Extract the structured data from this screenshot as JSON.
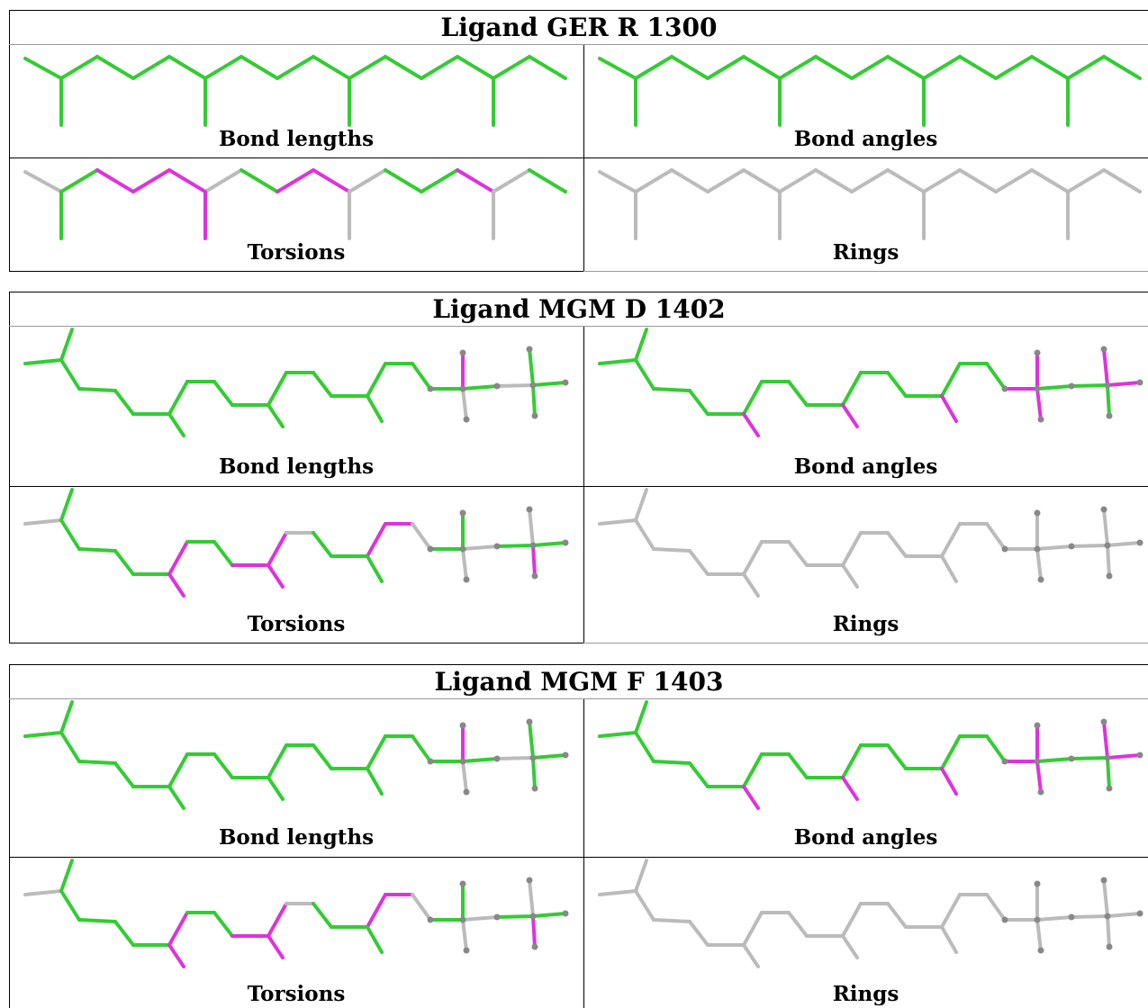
{
  "colors": {
    "green": "#33cc33",
    "magenta": "#dd33dd",
    "grey": "#bbbbbb",
    "atom": "#888888",
    "border": "#000000"
  },
  "cell_labels": [
    "Bond lengths",
    "Bond angles",
    "Torsions",
    "Rings"
  ],
  "ligands": [
    {
      "title": "Ligand GER R 1300",
      "molecule": "chain",
      "panels": [
        {
          "label": "Bond lengths",
          "colors": [
            "g",
            "g",
            "g",
            "g",
            "g",
            "g",
            "g",
            "g",
            "g",
            "g",
            "g",
            "g",
            "g",
            "g",
            "g",
            "g",
            "g",
            "g",
            "g"
          ]
        },
        {
          "label": "Bond angles",
          "colors": [
            "g",
            "g",
            "g",
            "g",
            "g",
            "g",
            "g",
            "g",
            "g",
            "g",
            "g",
            "g",
            "g",
            "g",
            "g",
            "g",
            "g",
            "g",
            "g"
          ]
        },
        {
          "label": "Torsions",
          "colors": [
            "n",
            "g",
            "m",
            "m",
            "m",
            "n",
            "g",
            "m",
            "m",
            "n",
            "g",
            "g",
            "m",
            "n",
            "g",
            "g",
            "m",
            "n",
            "n"
          ]
        },
        {
          "label": "Rings",
          "colors": [
            "n",
            "n",
            "n",
            "n",
            "n",
            "n",
            "n",
            "n",
            "n",
            "n",
            "n",
            "n",
            "n",
            "n",
            "n",
            "n",
            "n",
            "n",
            "n"
          ]
        }
      ]
    },
    {
      "title": "Ligand MGM D 1402",
      "molecule": "branched",
      "panels": [
        {
          "label": "Bond lengths",
          "colors": [
            "g",
            "g",
            "g",
            "g",
            "g",
            "g",
            "g",
            "g",
            "g",
            "g",
            "g",
            "g",
            "g",
            "g",
            "g",
            "g",
            "g",
            "g",
            "g",
            "g",
            "g",
            "g",
            "n",
            "g",
            "m",
            "n",
            "g",
            "g",
            "g",
            "n"
          ]
        },
        {
          "label": "Bond angles",
          "colors": [
            "g",
            "g",
            "g",
            "g",
            "g",
            "g",
            "g",
            "g",
            "g",
            "g",
            "g",
            "g",
            "g",
            "g",
            "g",
            "g",
            "g",
            "m",
            "m",
            "m",
            "m",
            "g",
            "g",
            "m",
            "m",
            "m",
            "m",
            "g",
            "m",
            "m"
          ]
        },
        {
          "label": "Torsions",
          "colors": [
            "n",
            "g",
            "g",
            "g",
            "g",
            "m",
            "g",
            "g",
            "m",
            "m",
            "n",
            "g",
            "g",
            "m",
            "m",
            "n",
            "g",
            "m",
            "m",
            "g",
            "g",
            "n",
            "g",
            "g",
            "g",
            "n",
            "n",
            "m",
            "n",
            "n"
          ]
        },
        {
          "label": "Rings",
          "colors": [
            "n",
            "n",
            "n",
            "n",
            "n",
            "n",
            "n",
            "n",
            "n",
            "n",
            "n",
            "n",
            "n",
            "n",
            "n",
            "n",
            "n",
            "n",
            "n",
            "n",
            "n",
            "n",
            "n",
            "n",
            "n",
            "n",
            "n",
            "n",
            "n",
            "n"
          ]
        }
      ]
    },
    {
      "title": "Ligand MGM F 1403",
      "molecule": "branched",
      "panels": [
        {
          "label": "Bond lengths",
          "colors": [
            "g",
            "g",
            "g",
            "g",
            "g",
            "g",
            "g",
            "g",
            "g",
            "g",
            "g",
            "g",
            "g",
            "g",
            "g",
            "g",
            "g",
            "g",
            "g",
            "g",
            "g",
            "g",
            "n",
            "g",
            "m",
            "n",
            "g",
            "g",
            "g",
            "n"
          ]
        },
        {
          "label": "Bond angles",
          "colors": [
            "g",
            "g",
            "g",
            "g",
            "g",
            "g",
            "g",
            "g",
            "g",
            "g",
            "g",
            "g",
            "g",
            "g",
            "g",
            "g",
            "g",
            "m",
            "m",
            "m",
            "m",
            "g",
            "g",
            "m",
            "m",
            "m",
            "m",
            "g",
            "m",
            "m"
          ]
        },
        {
          "label": "Torsions",
          "colors": [
            "n",
            "g",
            "g",
            "g",
            "g",
            "m",
            "g",
            "g",
            "m",
            "m",
            "n",
            "g",
            "g",
            "m",
            "m",
            "n",
            "g",
            "m",
            "m",
            "g",
            "g",
            "n",
            "g",
            "g",
            "g",
            "n",
            "n",
            "m",
            "n",
            "n"
          ]
        },
        {
          "label": "Rings",
          "colors": [
            "n",
            "n",
            "n",
            "n",
            "n",
            "n",
            "n",
            "n",
            "n",
            "n",
            "n",
            "n",
            "n",
            "n",
            "n",
            "n",
            "n",
            "n",
            "n",
            "n",
            "n",
            "n",
            "n",
            "n",
            "n",
            "n",
            "n",
            "n",
            "n",
            "n"
          ]
        }
      ]
    }
  ]
}
